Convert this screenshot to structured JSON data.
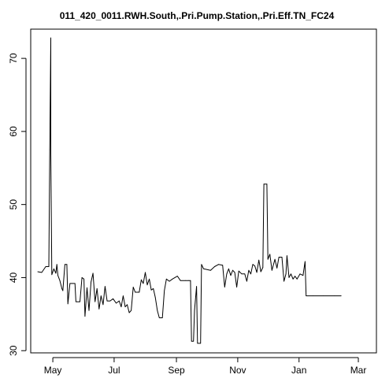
{
  "chart_data": {
    "type": "line",
    "title": "011_420_0011.RWH.South,.Pri.Pump.Station,.Pri.Eff.TN_FC24",
    "xlabel": "",
    "ylabel": "",
    "xlim": [
      "2014-04-09",
      "2015-03-19"
    ],
    "ylim": [
      29.7,
      74.0
    ],
    "x_ticks": [
      {
        "date": "2014-05-01",
        "label": "May"
      },
      {
        "date": "2014-07-01",
        "label": "Jul"
      },
      {
        "date": "2014-09-01",
        "label": "Sep"
      },
      {
        "date": "2014-11-01",
        "label": "Nov"
      },
      {
        "date": "2015-01-01",
        "label": "Jan"
      },
      {
        "date": "2015-03-01",
        "label": "Mar"
      }
    ],
    "y_ticks": [
      30,
      40,
      50,
      60,
      70
    ],
    "grid": false,
    "legend": "none",
    "line_color": "#000000",
    "series": [
      {
        "points": [
          [
            "2014-04-16",
            40.8
          ],
          [
            "2014-04-20",
            40.7
          ],
          [
            "2014-04-24",
            41.5
          ],
          [
            "2014-04-27",
            41.5
          ],
          [
            "2014-04-28",
            57.5
          ],
          [
            "2014-04-29",
            72.8
          ],
          [
            "2014-04-29",
            57.0
          ],
          [
            "2014-04-30",
            40.4
          ],
          [
            "2014-05-02",
            41.2
          ],
          [
            "2014-05-04",
            40.6
          ],
          [
            "2014-05-05",
            41.8
          ],
          [
            "2014-05-06",
            40.3
          ],
          [
            "2014-05-08",
            39.6
          ],
          [
            "2014-05-10",
            38.5
          ],
          [
            "2014-05-11",
            38.2
          ],
          [
            "2014-05-13",
            41.8
          ],
          [
            "2014-05-15",
            41.8
          ],
          [
            "2014-05-16",
            36.4
          ],
          [
            "2014-05-18",
            39.2
          ],
          [
            "2014-05-20",
            39.2
          ],
          [
            "2014-05-23",
            39.2
          ],
          [
            "2014-05-24",
            36.7
          ],
          [
            "2014-05-28",
            36.7
          ],
          [
            "2014-05-30",
            40.0
          ],
          [
            "2014-06-01",
            39.8
          ],
          [
            "2014-06-02",
            34.7
          ],
          [
            "2014-06-04",
            38.6
          ],
          [
            "2014-06-06",
            35.5
          ],
          [
            "2014-06-08",
            39.4
          ],
          [
            "2014-06-10",
            40.6
          ],
          [
            "2014-06-12",
            36.7
          ],
          [
            "2014-06-14",
            38.5
          ],
          [
            "2014-06-16",
            35.7
          ],
          [
            "2014-06-18",
            37.5
          ],
          [
            "2014-06-20",
            36.3
          ],
          [
            "2014-06-22",
            38.8
          ],
          [
            "2014-06-24",
            36.8
          ],
          [
            "2014-06-27",
            36.8
          ],
          [
            "2014-06-30",
            37.1
          ],
          [
            "2014-07-03",
            36.5
          ],
          [
            "2014-07-06",
            36.8
          ],
          [
            "2014-07-08",
            36.0
          ],
          [
            "2014-07-10",
            37.5
          ],
          [
            "2014-07-12",
            36.0
          ],
          [
            "2014-07-14",
            36.3
          ],
          [
            "2014-07-16",
            35.2
          ],
          [
            "2014-07-18",
            35.5
          ],
          [
            "2014-07-20",
            38.7
          ],
          [
            "2014-07-22",
            38.0
          ],
          [
            "2014-07-26",
            38.0
          ],
          [
            "2014-07-28",
            39.7
          ],
          [
            "2014-07-30",
            39.2
          ],
          [
            "2014-08-01",
            40.7
          ],
          [
            "2014-08-03",
            39.0
          ],
          [
            "2014-08-05",
            39.8
          ],
          [
            "2014-08-07",
            38.3
          ],
          [
            "2014-08-09",
            38.5
          ],
          [
            "2014-08-11",
            37.3
          ],
          [
            "2014-08-13",
            35.5
          ],
          [
            "2014-08-15",
            34.5
          ],
          [
            "2014-08-18",
            34.5
          ],
          [
            "2014-08-20",
            38.2
          ],
          [
            "2014-08-22",
            39.8
          ],
          [
            "2014-08-25",
            39.5
          ],
          [
            "2014-08-28",
            39.8
          ],
          [
            "2014-09-02",
            40.2
          ],
          [
            "2014-09-05",
            39.6
          ],
          [
            "2014-09-10",
            39.6
          ],
          [
            "2014-09-13",
            39.6
          ],
          [
            "2014-09-15",
            39.6
          ],
          [
            "2014-09-16",
            31.3
          ],
          [
            "2014-09-18",
            31.3
          ],
          [
            "2014-09-19",
            35.5
          ],
          [
            "2014-09-21",
            38.8
          ],
          [
            "2014-09-22",
            31.0
          ],
          [
            "2014-09-25",
            31.0
          ],
          [
            "2014-09-26",
            41.8
          ],
          [
            "2014-09-28",
            41.2
          ],
          [
            "2014-10-05",
            41.0
          ],
          [
            "2014-10-09",
            41.5
          ],
          [
            "2014-10-13",
            41.8
          ],
          [
            "2014-10-17",
            41.7
          ],
          [
            "2014-10-19",
            38.7
          ],
          [
            "2014-10-21",
            40.5
          ],
          [
            "2014-10-23",
            41.2
          ],
          [
            "2014-10-25",
            40.3
          ],
          [
            "2014-10-27",
            41.0
          ],
          [
            "2014-10-29",
            40.7
          ],
          [
            "2014-10-31",
            38.7
          ],
          [
            "2014-11-02",
            40.9
          ],
          [
            "2014-11-05",
            40.5
          ],
          [
            "2014-11-08",
            40.5
          ],
          [
            "2014-11-10",
            39.5
          ],
          [
            "2014-11-12",
            41.0
          ],
          [
            "2014-11-14",
            40.5
          ],
          [
            "2014-11-16",
            41.8
          ],
          [
            "2014-11-18",
            41.6
          ],
          [
            "2014-11-20",
            40.7
          ],
          [
            "2014-11-22",
            42.4
          ],
          [
            "2014-11-24",
            40.8
          ],
          [
            "2014-11-26",
            41.4
          ],
          [
            "2014-11-27",
            52.8
          ],
          [
            "2014-11-30",
            52.8
          ],
          [
            "2014-12-01",
            42.5
          ],
          [
            "2014-12-03",
            43.2
          ],
          [
            "2014-12-05",
            41.0
          ],
          [
            "2014-12-08",
            42.5
          ],
          [
            "2014-12-10",
            41.3
          ],
          [
            "2014-12-12",
            42.8
          ],
          [
            "2014-12-15",
            42.8
          ],
          [
            "2014-12-17",
            39.5
          ],
          [
            "2014-12-19",
            40.5
          ],
          [
            "2014-12-20",
            43.0
          ],
          [
            "2014-12-22",
            40.0
          ],
          [
            "2014-12-24",
            40.5
          ],
          [
            "2014-12-26",
            39.8
          ],
          [
            "2014-12-28",
            40.2
          ],
          [
            "2014-12-30",
            39.8
          ],
          [
            "2015-01-02",
            40.5
          ],
          [
            "2015-01-05",
            40.3
          ],
          [
            "2015-01-07",
            42.2
          ],
          [
            "2015-01-08",
            37.5
          ],
          [
            "2015-01-15",
            37.5
          ],
          [
            "2015-01-25",
            37.5
          ],
          [
            "2015-02-05",
            37.5
          ],
          [
            "2015-02-12",
            37.5
          ]
        ]
      }
    ]
  }
}
